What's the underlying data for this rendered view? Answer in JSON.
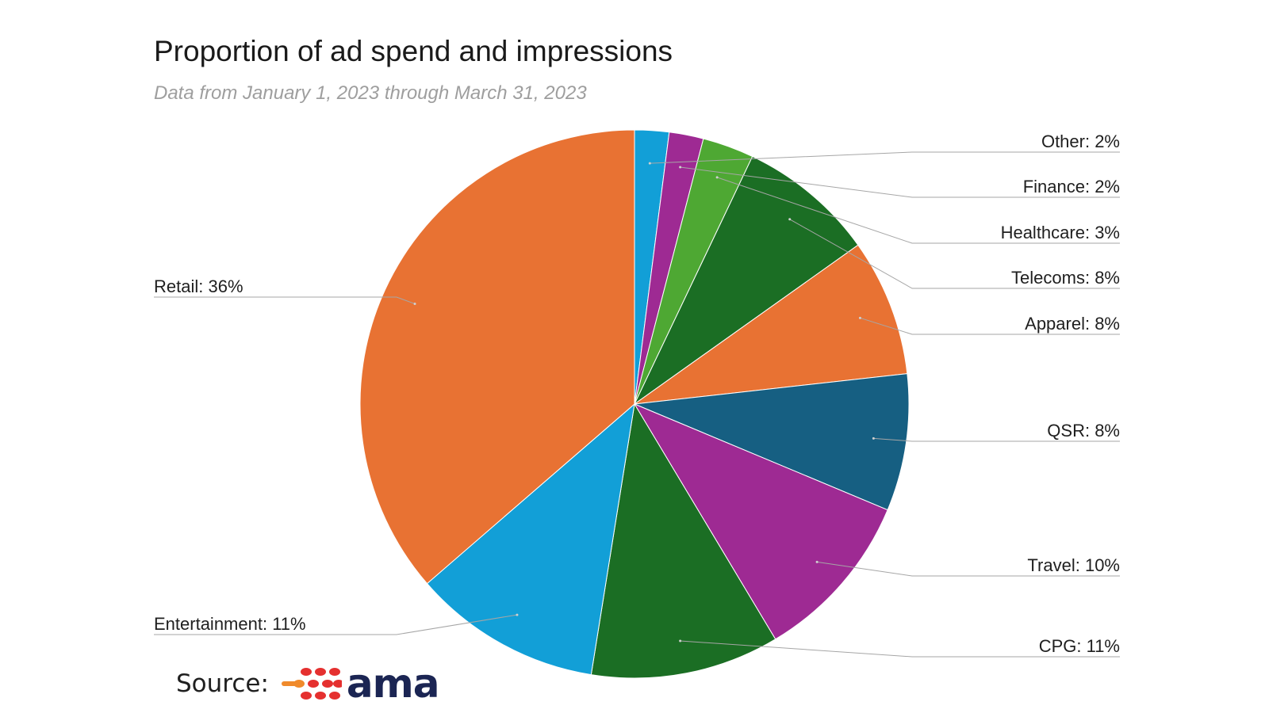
{
  "header": {
    "title": "Proportion of ad spend and impressions",
    "subtitle": "Data from January 1, 2023 through March 31, 2023"
  },
  "source": {
    "label": "Source:",
    "logo_text": "ama",
    "logo_colors": [
      "#e5302f",
      "#f08a2b"
    ]
  },
  "chart_data": {
    "type": "pie",
    "title": "Proportion of ad spend and impressions",
    "subtitle": "Data from January 1, 2023 through March 31, 2023",
    "start_angle": "12 o'clock",
    "direction": "clockwise",
    "label_format": "{name}: {value}%",
    "slices": [
      {
        "name": "Other",
        "value": 2,
        "color": "#129fd7",
        "label_side": "right"
      },
      {
        "name": "Finance",
        "value": 2,
        "color": "#9e2a93",
        "label_side": "right"
      },
      {
        "name": "Healthcare",
        "value": 3,
        "color": "#4ea833",
        "label_side": "right"
      },
      {
        "name": "Telecoms",
        "value": 8,
        "color": "#1b6e24",
        "label_side": "right"
      },
      {
        "name": "Apparel",
        "value": 8,
        "color": "#e87233",
        "label_side": "right"
      },
      {
        "name": "QSR",
        "value": 8,
        "color": "#165f82",
        "label_side": "right"
      },
      {
        "name": "Travel",
        "value": 10,
        "color": "#9e2a93",
        "label_side": "right"
      },
      {
        "name": "CPG",
        "value": 11,
        "color": "#1b6e24",
        "label_side": "right"
      },
      {
        "name": "Entertainment",
        "value": 11,
        "color": "#129fd7",
        "label_side": "left"
      },
      {
        "name": "Retail",
        "value": 36,
        "color": "#e87233",
        "label_side": "left"
      }
    ]
  }
}
